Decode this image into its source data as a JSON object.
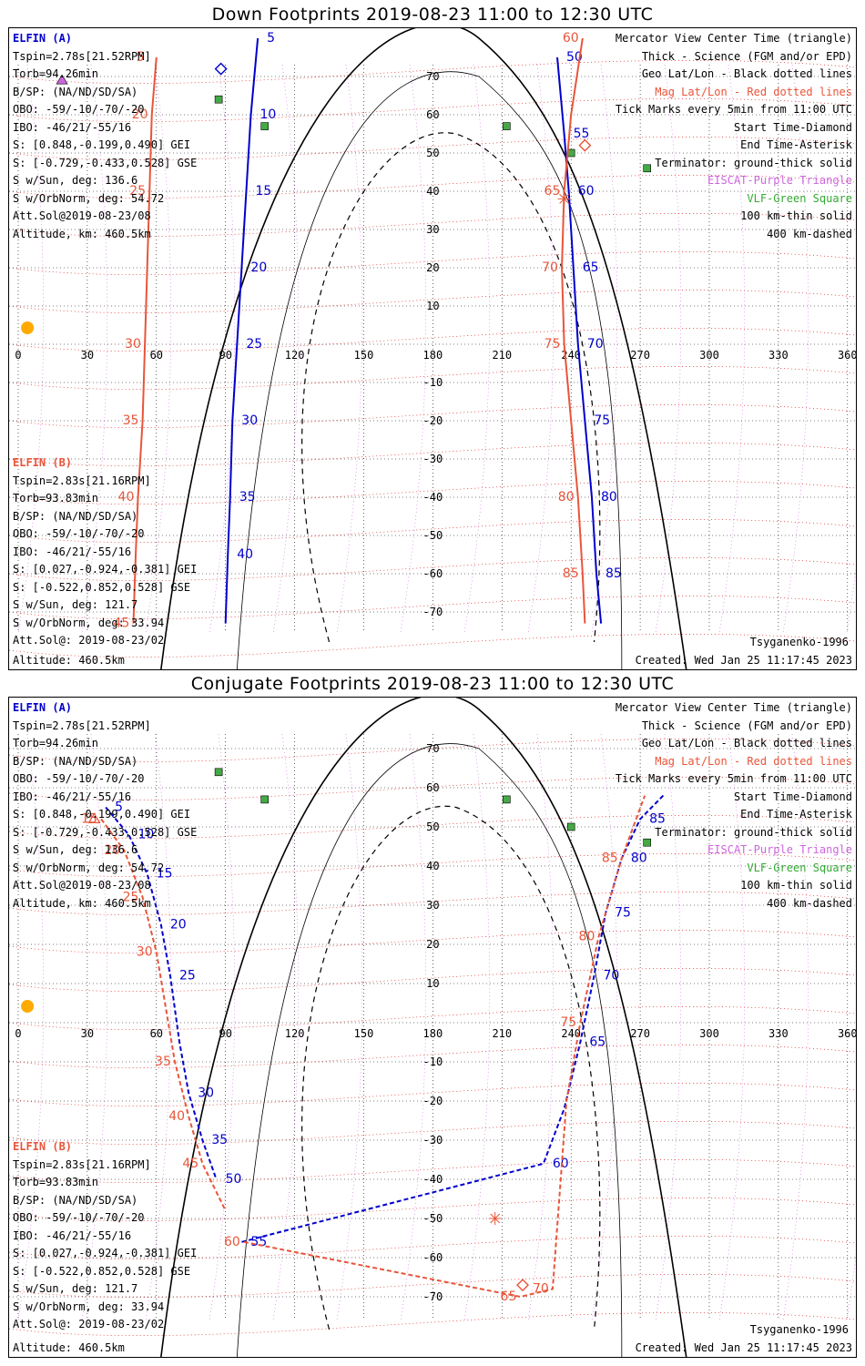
{
  "panels": [
    {
      "title": "Down Footprints 2019-08-23 11:00 to 12:30 UTC",
      "elfin_a": {
        "header": "ELFIN (A)",
        "lines": [
          "Tspin=2.78s[21.52RPM]",
          "Torb=94.26min",
          "B/SP: (NA/ND/SD/SA)",
          "OBO: -59/-10/-70/-20",
          "IBO: -46/21/-55/16",
          "S: [0.848,-0.199,0.490] GEI",
          "S: [-0.729,-0.433,0.528] GSE",
          "S w/Sun, deg: 136.6",
          "S w/OrbNorm, deg: 54.72",
          "Att.Sol@2019-08-23/08",
          "Altitude, km: 460.5km"
        ]
      },
      "elfin_b": {
        "header": "ELFIN (B)",
        "lines": [
          "Tspin=2.83s[21.16RPM]",
          "Torb=93.83min",
          "B/SP: (NA/ND/SD/SA)",
          "OBO: -59/-10/-70/-20",
          "IBO: -46/21/-55/16",
          "S: [0.027,-0.924,-0.381] GEI",
          "S: [-0.522,0.852,0.528] GSE",
          "S w/Sun, deg: 121.7",
          "S w/OrbNorm, deg: 33.94",
          "Att.Sol@: 2019-08-23/02",
          "Altitude: 460.5km"
        ]
      },
      "legend": [
        {
          "text": "Mercator View Center Time (triangle)",
          "color": "#000000"
        },
        {
          "text": "Thick - Science (FGM and/or EPD)",
          "color": "#000000"
        },
        {
          "text": "Geo Lat/Lon - Black dotted lines",
          "color": "#000000"
        },
        {
          "text": "Mag Lat/Lon - Red dotted lines",
          "color": "#e8553a"
        },
        {
          "text": "Tick Marks every 5min from 11:00 UTC",
          "color": "#000000"
        },
        {
          "text": "Start Time-Diamond",
          "color": "#000000"
        },
        {
          "text": "End Time-Asterisk",
          "color": "#000000"
        },
        {
          "text": "Terminator: ground-thick solid",
          "color": "#000000"
        },
        {
          "text": "EISCAT-Purple Triangle",
          "color": "#cc66dd"
        },
        {
          "text": "VLF-Green Square",
          "color": "#33aa33"
        },
        {
          "text": "100 km-thin solid",
          "color": "#000000"
        },
        {
          "text": "400 km-dashed",
          "color": "#000000"
        }
      ],
      "model": "Tsyganenko-1996",
      "created": "Created: Wed Jan 25 11:17:45 2023"
    },
    {
      "title": "Conjugate Footprints 2019-08-23 11:00 to 12:30 UTC",
      "elfin_a": {
        "header": "ELFIN (A)",
        "lines": [
          "Tspin=2.78s[21.52RPM]",
          "Torb=94.26min",
          "B/SP: (NA/ND/SD/SA)",
          "OBO: -59/-10/-70/-20",
          "IBO: -46/21/-55/16",
          "S: [0.848,-0.199,0.490] GEI",
          "S: [-0.729,-0.433,0.528] GSE",
          "S w/Sun, deg: 136.6",
          "S w/OrbNorm, deg: 54.72",
          "Att.Sol@2019-08-23/08",
          "Altitude, km: 460.5km"
        ]
      },
      "elfin_b": {
        "header": "ELFIN (B)",
        "lines": [
          "Tspin=2.83s[21.16RPM]",
          "Torb=93.83min",
          "B/SP: (NA/ND/SD/SA)",
          "OBO: -59/-10/-70/-20",
          "IBO: -46/21/-55/16",
          "S: [0.027,-0.924,-0.381] GEI",
          "S: [-0.522,0.852,0.528] GSE",
          "S w/Sun, deg: 121.7",
          "S w/OrbNorm, deg: 33.94",
          "Att.Sol@: 2019-08-23/02",
          "Altitude: 460.5km"
        ]
      },
      "legend": [
        {
          "text": "Mercator View Center Time (triangle)",
          "color": "#000000"
        },
        {
          "text": "Thick - Science (FGM and/or EPD)",
          "color": "#000000"
        },
        {
          "text": "Geo Lat/Lon - Black dotted lines",
          "color": "#000000"
        },
        {
          "text": "Mag Lat/Lon - Red dotted lines",
          "color": "#e8553a"
        },
        {
          "text": "Tick Marks every 5min from 11:00 UTC",
          "color": "#000000"
        },
        {
          "text": "Start Time-Diamond",
          "color": "#000000"
        },
        {
          "text": "End Time-Asterisk",
          "color": "#000000"
        },
        {
          "text": "Terminator: ground-thick solid",
          "color": "#000000"
        },
        {
          "text": "EISCAT-Purple Triangle",
          "color": "#cc66dd"
        },
        {
          "text": "VLF-Green Square",
          "color": "#33aa33"
        },
        {
          "text": "100 km-thin solid",
          "color": "#000000"
        },
        {
          "text": "400 km-dashed",
          "color": "#000000"
        }
      ],
      "model": "Tsyganenko-1996",
      "created": "Created: Wed Jan 25 11:17:45 2023"
    }
  ],
  "axes": {
    "lon_ticks": [
      "0",
      "30",
      "60",
      "90",
      "120",
      "150",
      "180",
      "210",
      "240",
      "270",
      "300",
      "330",
      "360"
    ],
    "lat_ticks": [
      "70",
      "60",
      "50",
      "40",
      "30",
      "20",
      "10",
      "0",
      "-10",
      "-20",
      "-30",
      "-40",
      "-50",
      "-60",
      "-70"
    ]
  },
  "colors": {
    "elfin_a": "#0000cc",
    "elfin_b": "#e8553a",
    "mag_grid": "#dd2222",
    "geo_grid": "#000000",
    "vlf": "#44aa44",
    "eiscat": "#cc66dd",
    "sun": "#ffaa00"
  },
  "chart_data": [
    {
      "type": "map",
      "projection": "Mercator",
      "panel": "Down Footprints",
      "series": [
        {
          "name": "ELFIN (A)",
          "minute_ticks": [
            5,
            10,
            15,
            20,
            25,
            30,
            35,
            40,
            50,
            55,
            60,
            65,
            70,
            75,
            80,
            85
          ],
          "track": [
            [
              104,
              80
            ],
            [
              101,
              60
            ],
            [
              99,
              40
            ],
            [
              97,
              20
            ],
            [
              95,
              0
            ],
            [
              93,
              -20
            ],
            [
              92,
              -40
            ],
            [
              91,
              -55
            ],
            [
              90,
              -73
            ],
            [
              234,
              75
            ],
            [
              237,
              55
            ],
            [
              239,
              40
            ],
            [
              241,
              20
            ],
            [
              243,
              0
            ],
            [
              246,
              -20
            ],
            [
              249,
              -40
            ],
            [
              251,
              -60
            ],
            [
              253,
              -73
            ]
          ]
        },
        {
          "name": "ELFIN (B)",
          "minute_ticks": [
            5,
            20,
            25,
            30,
            35,
            40,
            45,
            60,
            65,
            70,
            75,
            80,
            85
          ],
          "track": [
            [
              60,
              75
            ],
            [
              58,
              60
            ],
            [
              57,
              40
            ],
            [
              56,
              20
            ],
            [
              55,
              0
            ],
            [
              54,
              -20
            ],
            [
              52,
              -40
            ],
            [
              51,
              -55
            ],
            [
              50,
              -73
            ],
            [
              245,
              80
            ],
            [
              240,
              60
            ],
            [
              237,
              40
            ],
            [
              236,
              20
            ],
            [
              237,
              0
            ],
            [
              240,
              -20
            ],
            [
              243,
              -40
            ],
            [
              245,
              -60
            ],
            [
              246,
              -73
            ]
          ]
        }
      ],
      "markers": {
        "start_diamond": [
          [
            88,
            72
          ],
          [
            246,
            52
          ]
        ],
        "end_asterisk": [
          [
            237,
            38
          ]
        ],
        "vlf_squares": [
          [
            87,
            64
          ],
          [
            107,
            57
          ],
          [
            212,
            57
          ],
          [
            240,
            50
          ],
          [
            273,
            46
          ]
        ],
        "eiscat_triangle": [
          [
            19,
            69
          ]
        ]
      }
    },
    {
      "type": "map",
      "projection": "Mercator",
      "panel": "Conjugate Footprints",
      "series": [
        {
          "name": "ELFIN (A)",
          "minute_ticks": [
            5,
            10,
            15,
            20,
            25,
            30,
            35,
            50,
            55,
            60,
            65,
            70,
            75,
            80,
            85
          ],
          "track": [
            [
              38,
              55
            ],
            [
              48,
              48
            ],
            [
              56,
              38
            ],
            [
              62,
              25
            ],
            [
              66,
              12
            ],
            [
              70,
              -5
            ],
            [
              74,
              -18
            ],
            [
              80,
              -30
            ],
            [
              86,
              -40
            ],
            [
              97,
              -56
            ],
            [
              228,
              -36
            ],
            [
              237,
              -22
            ],
            [
              244,
              -5
            ],
            [
              250,
              12
            ],
            [
              255,
              28
            ],
            [
              262,
              42
            ],
            [
              270,
              52
            ],
            [
              280,
              58
            ]
          ]
        },
        {
          "name": "ELFIN (B)",
          "minute_ticks": [
            15,
            20,
            25,
            30,
            35,
            40,
            45,
            60,
            65,
            70,
            75,
            80,
            85
          ],
          "track": [
            [
              36,
              52
            ],
            [
              46,
              44
            ],
            [
              54,
              32
            ],
            [
              60,
              18
            ],
            [
              64,
              4
            ],
            [
              68,
              -10
            ],
            [
              74,
              -24
            ],
            [
              80,
              -36
            ],
            [
              90,
              -48
            ],
            [
              98,
              -56
            ],
            [
              218,
              -70
            ],
            [
              232,
              -68
            ],
            [
              238,
              -20
            ],
            [
              244,
              0
            ],
            [
              252,
              22
            ],
            [
              262,
              42
            ],
            [
              272,
              58
            ]
          ]
        }
      ],
      "markers": {
        "start_diamond": [
          [
            219,
            -67
          ]
        ],
        "end_asterisk": [
          [
            207,
            -50
          ]
        ],
        "vlf_squares": [
          [
            87,
            64
          ],
          [
            107,
            57
          ],
          [
            212,
            57
          ],
          [
            240,
            50
          ],
          [
            273,
            46
          ]
        ],
        "center_triangle": [
          [
            33,
            52
          ]
        ]
      }
    }
  ]
}
